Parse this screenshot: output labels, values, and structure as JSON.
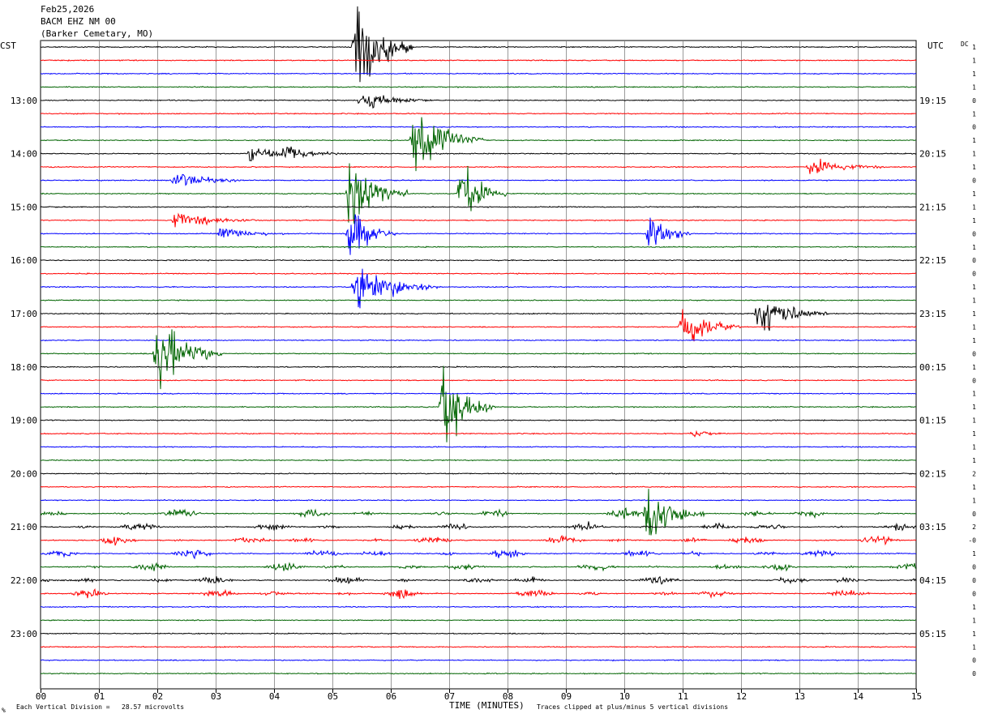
{
  "header": {
    "date": "Feb25,2026",
    "station": "BACM EHZ NM 00",
    "location": "(Barker Cemetary, MO)"
  },
  "axis": {
    "left_tz": "CST",
    "right_tz": "UTC",
    "dc_label": "DC",
    "xlabel": "TIME (MINUTES)",
    "footer_left_mark": "%",
    "footer_scale": "Each Vertical Division =   28.57 microvolts",
    "footer_clip": "Traces clipped at plus/minus 5 vertical divisions"
  },
  "colors": {
    "black": "#000000",
    "red": "#ff0000",
    "blue": "#0000ff",
    "green": "#006400",
    "grid": "#000000"
  },
  "chart_data": {
    "type": "helicorder",
    "xlim": [
      0,
      15
    ],
    "x_ticks": [
      "00",
      "01",
      "02",
      "03",
      "04",
      "05",
      "06",
      "07",
      "08",
      "09",
      "10",
      "11",
      "12",
      "13",
      "14",
      "15"
    ],
    "row_minutes": 15,
    "trace_count": 48,
    "color_cycle": [
      "black",
      "red",
      "blue",
      "green"
    ],
    "left_time_labels": [
      {
        "row": 4,
        "label": "13:00"
      },
      {
        "row": 8,
        "label": "14:00"
      },
      {
        "row": 12,
        "label": "15:00"
      },
      {
        "row": 16,
        "label": "16:00"
      },
      {
        "row": 20,
        "label": "17:00"
      },
      {
        "row": 24,
        "label": "18:00"
      },
      {
        "row": 28,
        "label": "19:00"
      },
      {
        "row": 32,
        "label": "20:00"
      },
      {
        "row": 36,
        "label": "21:00"
      },
      {
        "row": 40,
        "label": "22:00"
      },
      {
        "row": 44,
        "label": "23:00"
      }
    ],
    "right_time_labels": [
      {
        "row": 4,
        "label": "19:15"
      },
      {
        "row": 8,
        "label": "20:15"
      },
      {
        "row": 12,
        "label": "21:15"
      },
      {
        "row": 16,
        "label": "22:15"
      },
      {
        "row": 20,
        "label": "23:15"
      },
      {
        "row": 24,
        "label": "00:15"
      },
      {
        "row": 28,
        "label": "01:15"
      },
      {
        "row": 32,
        "label": "02:15"
      },
      {
        "row": 36,
        "label": "03:15"
      },
      {
        "row": 40,
        "label": "04:15"
      },
      {
        "row": 44,
        "label": "05:15"
      }
    ],
    "dc_offsets": [
      "1",
      "1",
      "1",
      "1",
      "0",
      "1",
      "0",
      "1",
      "1",
      "1",
      "0",
      "1",
      "1",
      "1",
      "0",
      "1",
      "0",
      "0",
      "1",
      "1",
      "1",
      "1",
      "1",
      "0",
      "1",
      "0",
      "1",
      "1",
      "1",
      "1",
      "1",
      "1",
      "2",
      "1",
      "1",
      "0",
      "2",
      "-0",
      "1",
      "0",
      "0",
      "0",
      "1",
      "1",
      "1",
      "1",
      "0",
      "0"
    ],
    "events": [
      {
        "row": 0,
        "minute": 5.4,
        "amplitude": 6,
        "duration": 1.0
      },
      {
        "row": 4,
        "minute": 5.5,
        "amplitude": 1.2,
        "duration": 1.2
      },
      {
        "row": 7,
        "minute": 6.4,
        "amplitude": 4,
        "duration": 1.2
      },
      {
        "row": 8,
        "minute": 3.6,
        "amplitude": 1.1,
        "duration": 0.9
      },
      {
        "row": 8,
        "minute": 4.2,
        "amplitude": 1.0,
        "duration": 0.9
      },
      {
        "row": 9,
        "minute": 13.2,
        "amplitude": 1.1,
        "duration": 1.2
      },
      {
        "row": 10,
        "minute": 2.3,
        "amplitude": 1.0,
        "duration": 1.2
      },
      {
        "row": 11,
        "minute": 5.3,
        "amplitude": 5,
        "duration": 1.0
      },
      {
        "row": 11,
        "minute": 7.2,
        "amplitude": 4,
        "duration": 0.8
      },
      {
        "row": 13,
        "minute": 2.3,
        "amplitude": 0.9,
        "duration": 1.4
      },
      {
        "row": 14,
        "minute": 3.1,
        "amplitude": 0.6,
        "duration": 1.2
      },
      {
        "row": 14,
        "minute": 5.3,
        "amplitude": 3,
        "duration": 0.8
      },
      {
        "row": 14,
        "minute": 10.45,
        "amplitude": 3,
        "duration": 0.7
      },
      {
        "row": 18,
        "minute": 5.4,
        "amplitude": 3,
        "duration": 1.4
      },
      {
        "row": 20,
        "minute": 12.3,
        "amplitude": 2.5,
        "duration": 1.2
      },
      {
        "row": 21,
        "minute": 11.0,
        "amplitude": 2.5,
        "duration": 1.0
      },
      {
        "row": 23,
        "minute": 2.0,
        "amplitude": 5,
        "duration": 1.1
      },
      {
        "row": 27,
        "minute": 6.9,
        "amplitude": 5,
        "duration": 0.9
      },
      {
        "row": 29,
        "minute": 11.2,
        "amplitude": 0.4,
        "duration": 0.6
      },
      {
        "row": 35,
        "minute": 10.4,
        "amplitude": 3,
        "duration": 1.0
      }
    ],
    "noisy_rows": [
      35,
      36,
      37,
      38,
      39,
      40,
      41
    ],
    "clip_divisions": 5
  }
}
